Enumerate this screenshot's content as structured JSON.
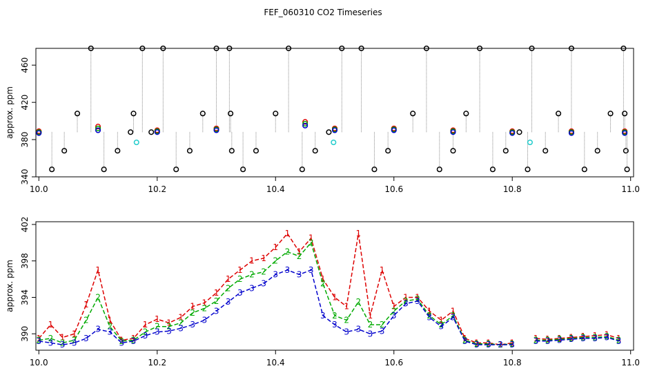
{
  "title": "FEF_060310  CO2 Timeseries",
  "chart_data": [
    {
      "type": "scatter",
      "ylabel": "approx. ppm",
      "xlim": [
        9.995,
        11.005
      ],
      "ylim": [
        340,
        478
      ],
      "x_ticks": [
        "10.0",
        "10.2",
        "10.4",
        "10.6",
        "10.8",
        "11.0"
      ],
      "y_ticks": [
        "340",
        "380",
        "420",
        "460"
      ],
      "series": [
        {
          "color": "#000000",
          "marker": "circle",
          "x": [
            10.0,
            10.022,
            10.043,
            10.065,
            10.088,
            10.11,
            10.133,
            10.155,
            10.16,
            10.175,
            10.19,
            10.21,
            10.232,
            10.255,
            10.277,
            10.3,
            10.322,
            10.324,
            10.326,
            10.345,
            10.367,
            10.4,
            10.422,
            10.445,
            10.467,
            10.49,
            10.512,
            10.545,
            10.567,
            10.59,
            10.632,
            10.655,
            10.677,
            10.7,
            10.722,
            10.745,
            10.767,
            10.789,
            10.812,
            10.826,
            10.833,
            10.856,
            10.878,
            10.9,
            10.922,
            10.944,
            10.966,
            10.988,
            10.99,
            10.992,
            10.994
          ],
          "y": [
            388,
            348,
            368,
            408,
            478,
            348,
            368,
            388,
            408,
            478,
            388,
            478,
            348,
            368,
            408,
            478,
            478,
            408,
            368,
            348,
            368,
            408,
            478,
            348,
            368,
            388,
            478,
            478,
            348,
            368,
            408,
            478,
            348,
            368,
            408,
            478,
            348,
            368,
            388,
            348,
            478,
            368,
            408,
            478,
            348,
            368,
            408,
            478,
            408,
            368,
            348
          ]
        },
        {
          "color": "#dd0000",
          "marker": "circle",
          "x": [
            10.0,
            10.1,
            10.2,
            10.3,
            10.45,
            10.5,
            10.6,
            10.7,
            10.8,
            10.9,
            10.99
          ],
          "y": [
            389,
            394,
            390,
            392,
            399,
            392,
            392,
            390,
            389,
            389,
            389
          ]
        },
        {
          "color": "#00aa00",
          "marker": "circle",
          "x": [
            10.0,
            10.1,
            10.2,
            10.3,
            10.45,
            10.5,
            10.6,
            10.7,
            10.8,
            10.9,
            10.99
          ],
          "y": [
            388,
            392,
            389,
            391,
            397,
            391,
            391,
            389,
            388,
            388,
            388
          ]
        },
        {
          "color": "#0000cc",
          "marker": "circle",
          "x": [
            10.0,
            10.1,
            10.2,
            10.3,
            10.45,
            10.5,
            10.6,
            10.7,
            10.8,
            10.9,
            10.99
          ],
          "y": [
            387,
            390,
            388,
            390,
            395,
            390,
            390,
            388,
            387,
            387,
            387
          ]
        },
        {
          "color": "#22cccc",
          "marker": "circle",
          "x": [
            10.165,
            10.498,
            10.83
          ],
          "y": [
            377,
            377,
            377
          ]
        }
      ]
    },
    {
      "type": "line",
      "ylabel": "approx. ppm",
      "xlim": [
        9.995,
        11.005
      ],
      "ylim": [
        388.2,
        402.3
      ],
      "x_ticks": [
        "10.0",
        "10.2",
        "10.4",
        "10.6",
        "10.8",
        "11.0"
      ],
      "y_ticks": [
        "390",
        "394",
        "398",
        "402"
      ],
      "series": [
        {
          "marker_label": "1",
          "color": "#dd0000",
          "x": [
            10.0,
            10.02,
            10.04,
            10.06,
            10.08,
            10.1,
            10.12,
            10.14,
            10.16,
            10.18,
            10.2,
            10.22,
            10.24,
            10.26,
            10.28,
            10.3,
            10.32,
            10.34,
            10.36,
            10.38,
            10.4,
            10.42,
            10.44,
            10.46,
            10.48,
            10.5,
            10.52,
            10.54,
            10.56,
            10.58,
            10.6,
            10.62,
            10.64,
            10.66,
            10.68,
            10.7,
            10.72,
            10.74,
            10.76,
            10.78,
            10.8,
            10.82,
            10.84,
            10.86,
            10.88,
            10.9,
            10.92,
            10.94,
            10.96,
            10.98
          ],
          "y": [
            389.5,
            391.0,
            389.6,
            390.0,
            393.2,
            397.0,
            391.5,
            389.3,
            389.5,
            391.0,
            391.6,
            391.2,
            391.8,
            393.0,
            393.4,
            394.5,
            396.0,
            397.0,
            398.0,
            398.3,
            399.5,
            401.0,
            399.0,
            400.5,
            396.0,
            394.0,
            393.0,
            401.0,
            392.0,
            397.0,
            393.0,
            394.0,
            394.0,
            392.5,
            391.5,
            392.5,
            389.5,
            389.0,
            389.0,
            388.8,
            389.0,
            null,
            389.5,
            389.4,
            389.5,
            389.6,
            389.7,
            389.8,
            389.9,
            389.5
          ]
        },
        {
          "marker_label": "2",
          "color": "#00aa00",
          "x": [
            10.0,
            10.02,
            10.04,
            10.06,
            10.08,
            10.1,
            10.12,
            10.14,
            10.16,
            10.18,
            10.2,
            10.22,
            10.24,
            10.26,
            10.28,
            10.3,
            10.32,
            10.34,
            10.36,
            10.38,
            10.4,
            10.42,
            10.44,
            10.46,
            10.48,
            10.5,
            10.52,
            10.54,
            10.56,
            10.58,
            10.6,
            10.62,
            10.64,
            10.66,
            10.68,
            10.7,
            10.72,
            10.74,
            10.76,
            10.78,
            10.8,
            10.82,
            10.84,
            10.86,
            10.88,
            10.9,
            10.92,
            10.94,
            10.96,
            10.98
          ],
          "y": [
            389.3,
            389.5,
            389.0,
            389.3,
            391.5,
            394.0,
            390.8,
            389.2,
            389.3,
            390.2,
            390.8,
            390.8,
            391.2,
            392.3,
            392.8,
            393.6,
            395.0,
            396.0,
            396.5,
            396.8,
            398.0,
            399.0,
            398.5,
            400.0,
            395.5,
            392.0,
            391.5,
            393.5,
            391.0,
            391.0,
            392.5,
            393.6,
            393.8,
            392.0,
            391.0,
            392.0,
            389.3,
            388.9,
            388.9,
            388.8,
            388.9,
            null,
            389.3,
            389.3,
            389.4,
            389.5,
            389.6,
            389.6,
            389.7,
            389.3
          ]
        },
        {
          "marker_label": "3",
          "color": "#0000cc",
          "x": [
            10.0,
            10.02,
            10.04,
            10.06,
            10.08,
            10.1,
            10.12,
            10.14,
            10.16,
            10.18,
            10.2,
            10.22,
            10.24,
            10.26,
            10.28,
            10.3,
            10.32,
            10.34,
            10.36,
            10.38,
            10.4,
            10.42,
            10.44,
            10.46,
            10.48,
            10.5,
            10.52,
            10.54,
            10.56,
            10.58,
            10.6,
            10.62,
            10.64,
            10.66,
            10.68,
            10.7,
            10.72,
            10.74,
            10.76,
            10.78,
            10.8,
            10.82,
            10.84,
            10.86,
            10.88,
            10.9,
            10.92,
            10.94,
            10.96,
            10.98
          ],
          "y": [
            389.2,
            389.0,
            388.8,
            389.0,
            389.5,
            390.5,
            390.2,
            389.0,
            389.2,
            389.8,
            390.2,
            390.3,
            390.6,
            391.0,
            391.5,
            392.5,
            393.5,
            394.5,
            395.0,
            395.5,
            396.5,
            397.0,
            396.5,
            397.0,
            392.0,
            391.0,
            390.2,
            390.5,
            390.0,
            390.3,
            392.0,
            393.3,
            393.6,
            391.8,
            390.8,
            391.8,
            389.2,
            388.8,
            388.8,
            388.8,
            388.8,
            null,
            389.2,
            389.2,
            389.3,
            389.4,
            389.5,
            389.5,
            389.6,
            389.2
          ]
        }
      ]
    }
  ]
}
